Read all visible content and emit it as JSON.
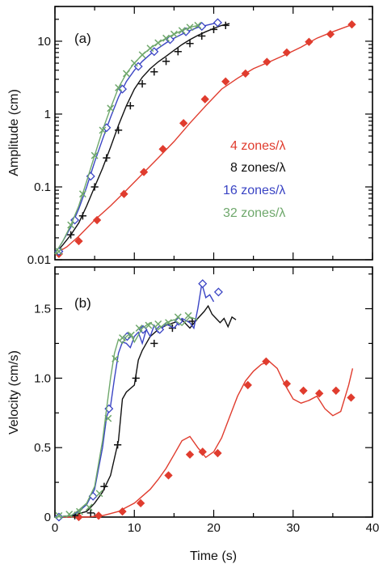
{
  "chart_data": [
    {
      "type": "line",
      "panel_label": "(a)",
      "xlabel": "",
      "ylabel": "Amplitude (cm)",
      "xlim": [
        0,
        40
      ],
      "ylim": [
        0.01,
        30
      ],
      "yscale": "log",
      "x_ticks": [
        0,
        10,
        20,
        30,
        40
      ],
      "y_ticks": [
        {
          "value": 0.01,
          "label": "0.01"
        },
        {
          "value": 0.1,
          "label": "0.1"
        },
        {
          "value": 1,
          "label": "1"
        },
        {
          "value": 10,
          "label": "10"
        }
      ],
      "legend_position": "center-right",
      "series": [
        {
          "name": "4 zones/λ",
          "color": "#e03c2e",
          "marker": "filled-diamond",
          "x": [
            0,
            1.5,
            3,
            5,
            7,
            9,
            11,
            13,
            15,
            17,
            19,
            21,
            23,
            25,
            27,
            29,
            31,
            33,
            35,
            37.5
          ],
          "y": [
            0.012,
            0.015,
            0.021,
            0.035,
            0.055,
            0.09,
            0.15,
            0.25,
            0.42,
            0.75,
            1.3,
            2.2,
            3.1,
            4.2,
            5.2,
            6.5,
            8.3,
            11,
            13.5,
            17
          ],
          "marker_x": [
            0.5,
            3,
            5.3,
            8.7,
            11.2,
            13.6,
            16.2,
            18.9,
            21.5,
            24,
            26.7,
            29.2,
            32,
            34.7,
            37.4
          ],
          "marker_y": [
            0.012,
            0.018,
            0.035,
            0.08,
            0.16,
            0.33,
            0.75,
            1.6,
            2.8,
            3.6,
            5.2,
            7,
            9.8,
            12.5,
            17
          ]
        },
        {
          "name": "8 zones/λ",
          "color": "#111111",
          "marker": "plus",
          "x": [
            0,
            1,
            2,
            3,
            4,
            5,
            6,
            7,
            8,
            9,
            10,
            11,
            12,
            13,
            14,
            15,
            16,
            17,
            18,
            19,
            20,
            21,
            22
          ],
          "y": [
            0.012,
            0.016,
            0.022,
            0.032,
            0.055,
            0.1,
            0.18,
            0.35,
            0.7,
            1.3,
            2.2,
            3.2,
            4.2,
            5.2,
            6.2,
            7.5,
            9,
            10.5,
            12,
            13.5,
            15,
            16.5,
            17.5
          ],
          "marker_x": [
            0.5,
            2,
            3.5,
            5,
            6.5,
            8,
            9.5,
            11,
            12.5,
            14,
            15.5,
            17,
            18.5,
            20,
            21.5
          ],
          "marker_y": [
            0.013,
            0.022,
            0.04,
            0.1,
            0.25,
            0.6,
            1.3,
            2.6,
            3.8,
            5.3,
            7.2,
            9.3,
            11.8,
            14.5,
            16.5
          ]
        },
        {
          "name": "16 zones/λ",
          "color": "#3a44c4",
          "marker": "open-diamond",
          "x": [
            0,
            1,
            2,
            3,
            4,
            5,
            6,
            7,
            8,
            9,
            10,
            11,
            12,
            13,
            14,
            15,
            16,
            17,
            18,
            19,
            20,
            21
          ],
          "y": [
            0.012,
            0.018,
            0.028,
            0.05,
            0.1,
            0.22,
            0.45,
            0.9,
            1.7,
            2.8,
            4,
            5.3,
            6.6,
            8,
            9.5,
            11,
            12.5,
            14,
            15.5,
            16.5,
            17.5,
            18
          ],
          "marker_x": [
            0.5,
            2.5,
            4.5,
            6.5,
            8.5,
            10.5,
            12.5,
            14.5,
            16.5,
            18.5,
            20.5
          ],
          "marker_y": [
            0.013,
            0.035,
            0.14,
            0.65,
            2.2,
            4.5,
            7.2,
            10.5,
            13.5,
            16,
            18
          ]
        },
        {
          "name": "32 zones/λ",
          "color": "#6fa86c",
          "marker": "x",
          "x": [
            0,
            1,
            2,
            3,
            4,
            5,
            6,
            7,
            8,
            9,
            10,
            11,
            12,
            13,
            14,
            15,
            16,
            17,
            18
          ],
          "y": [
            0.012,
            0.018,
            0.03,
            0.055,
            0.12,
            0.27,
            0.6,
            1.2,
            2.3,
            3.6,
            5,
            6.5,
            8,
            9.5,
            11,
            12.5,
            14,
            15.5,
            16.5
          ],
          "marker_x": [
            0.5,
            2,
            3.5,
            5,
            6,
            7,
            8,
            9,
            10,
            11,
            12,
            13,
            14,
            15,
            16,
            17,
            18
          ],
          "marker_y": [
            0.013,
            0.03,
            0.08,
            0.27,
            0.6,
            1.2,
            2.3,
            3.6,
            5,
            6.5,
            8,
            9.5,
            11,
            12.5,
            14,
            15.5,
            16.5
          ]
        }
      ]
    },
    {
      "type": "line",
      "panel_label": "(b)",
      "xlabel": "Time (s)",
      "ylabel": "Velocity (cm/s)",
      "xlim": [
        0,
        40
      ],
      "ylim": [
        0,
        1.8
      ],
      "x_ticks": [
        0,
        10,
        20,
        30,
        40
      ],
      "y_ticks": [
        {
          "value": 0,
          "label": "0"
        },
        {
          "value": 0.5,
          "label": "0.5"
        },
        {
          "value": 1.0,
          "label": "1.0"
        },
        {
          "value": 1.5,
          "label": "1.5"
        }
      ],
      "series": [
        {
          "name": "4 zones/λ",
          "color": "#e03c2e",
          "marker": "filled-diamond",
          "x": [
            0,
            2,
            4,
            6,
            8,
            10,
            12,
            13,
            14,
            15,
            16,
            17,
            18,
            19,
            20,
            21,
            22,
            23,
            24,
            25,
            26,
            27,
            28,
            29,
            30,
            31,
            32,
            33,
            34,
            35,
            36,
            37,
            37.5
          ],
          "y": [
            0,
            0,
            0,
            0.01,
            0.04,
            0.1,
            0.2,
            0.27,
            0.35,
            0.45,
            0.55,
            0.58,
            0.5,
            0.43,
            0.47,
            0.57,
            0.72,
            0.87,
            0.98,
            1.05,
            1.1,
            1.12,
            1.07,
            0.95,
            0.85,
            0.82,
            0.84,
            0.87,
            0.78,
            0.73,
            0.76,
            0.95,
            1.07
          ],
          "marker_x": [
            0.5,
            3,
            5.5,
            8.5,
            10.8,
            14.3,
            17,
            18.6,
            20.5,
            24.3,
            26.6,
            29.2,
            31.3,
            33.3,
            35.4,
            37.3
          ],
          "marker_y": [
            0,
            0,
            0.01,
            0.04,
            0.1,
            0.3,
            0.45,
            0.47,
            0.46,
            0.95,
            1.12,
            0.96,
            0.91,
            0.89,
            0.91,
            0.86
          ]
        },
        {
          "name": "8 zones/λ",
          "color": "#111111",
          "marker": "plus",
          "x": [
            0,
            2,
            4,
            5,
            6,
            7,
            8,
            8.5,
            9,
            10,
            10.5,
            11,
            12,
            13,
            14,
            15,
            16,
            17,
            18,
            18.8,
            19.3,
            19.8,
            20.3,
            20.8,
            21.3,
            21.8,
            22.3,
            22.8
          ],
          "y": [
            0,
            0.01,
            0.04,
            0.1,
            0.18,
            0.3,
            0.55,
            0.85,
            0.9,
            0.95,
            1.13,
            1.2,
            1.3,
            1.35,
            1.38,
            1.4,
            1.42,
            1.36,
            1.43,
            1.48,
            1.52,
            1.46,
            1.43,
            1.4,
            1.43,
            1.37,
            1.44,
            1.42
          ],
          "marker_x": [
            0.5,
            2.5,
            4.5,
            6.2,
            7.9,
            10.2,
            12.5,
            14.8,
            17.3
          ],
          "marker_y": [
            0,
            0.01,
            0.03,
            0.22,
            0.52,
            1.0,
            1.25,
            1.36,
            1.41
          ]
        },
        {
          "name": "16 zones/λ",
          "color": "#3a44c4",
          "marker": "open-diamond",
          "x": [
            0,
            2,
            3,
            4,
            5,
            6,
            6.5,
            7,
            7.5,
            8,
            8.5,
            9,
            9.5,
            10,
            10.5,
            11,
            11.5,
            12,
            12.5,
            13,
            14,
            15,
            16,
            17,
            17.5,
            18,
            18.5,
            19,
            19.5,
            20
          ],
          "y": [
            0,
            0.01,
            0.04,
            0.09,
            0.2,
            0.5,
            0.72,
            0.8,
            1.0,
            1.18,
            1.26,
            1.25,
            1.22,
            1.3,
            1.33,
            1.25,
            1.35,
            1.3,
            1.38,
            1.33,
            1.39,
            1.36,
            1.43,
            1.4,
            1.36,
            1.5,
            1.68,
            1.58,
            1.6,
            1.55
          ],
          "marker_x": [
            0.5,
            4.8,
            6.8,
            9.1,
            11.1,
            13.2,
            15.6,
            18.6,
            20.6
          ],
          "marker_y": [
            0,
            0.15,
            0.78,
            1.3,
            1.35,
            1.35,
            1.41,
            1.68,
            1.62
          ]
        },
        {
          "name": "32 zones/λ",
          "color": "#6fa86c",
          "marker": "x",
          "x": [
            0,
            2,
            3,
            4,
            5,
            6,
            6.5,
            7,
            7.5,
            8,
            8.5,
            9,
            9.5,
            10,
            11,
            12,
            13,
            14,
            15,
            16,
            17,
            18
          ],
          "y": [
            0,
            0.01,
            0.05,
            0.1,
            0.22,
            0.55,
            0.78,
            1.0,
            1.18,
            1.28,
            1.25,
            1.3,
            1.32,
            1.26,
            1.36,
            1.4,
            1.35,
            1.4,
            1.42,
            1.38,
            1.44,
            1.42
          ],
          "marker_x": [
            0.5,
            1.8,
            3.1,
            4.3,
            5.6,
            6.7,
            7.6,
            8.5,
            9.6,
            10.6,
            11.8,
            13,
            14.3,
            15.5,
            16.8
          ],
          "marker_y": [
            0.01,
            0.02,
            0.04,
            0.07,
            0.17,
            0.71,
            1.14,
            1.29,
            1.31,
            1.36,
            1.38,
            1.39,
            1.4,
            1.44,
            1.45
          ]
        }
      ]
    }
  ]
}
